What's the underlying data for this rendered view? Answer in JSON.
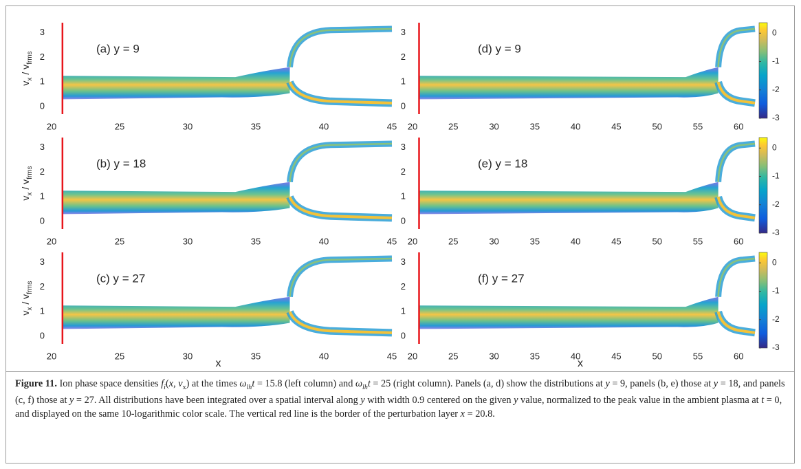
{
  "figure": {
    "ylabel_parts": [
      "v",
      "x",
      " / v",
      "frms"
    ],
    "xlabel": "x",
    "red_line": {
      "x": 20.8,
      "color": "#e8151b"
    },
    "colorbar": {
      "clim": [
        -3,
        0.37
      ],
      "ticks": [
        0,
        -1,
        -2,
        -3
      ]
    },
    "panels": [
      {
        "label": "(a) y = 9",
        "xlim": [
          20,
          45
        ],
        "xticks": [
          20,
          25,
          30,
          35,
          40,
          45
        ],
        "ylim": [
          -0.3,
          3.4
        ],
        "yticks": [
          0,
          1,
          2,
          3
        ]
      },
      {
        "label": "(b) y = 18",
        "xlim": [
          20,
          45
        ],
        "xticks": [
          20,
          25,
          30,
          35,
          40,
          45
        ],
        "ylim": [
          -0.3,
          3.4
        ],
        "yticks": [
          0,
          1,
          2,
          3
        ]
      },
      {
        "label": "(c) y = 27",
        "xlim": [
          20,
          45
        ],
        "xticks": [
          20,
          25,
          30,
          35,
          40,
          45
        ],
        "ylim": [
          -0.3,
          3.4
        ],
        "yticks": [
          0,
          1,
          2,
          3
        ]
      },
      {
        "label": "(d) y = 9",
        "xlim": [
          20,
          62
        ],
        "xticks": [
          20,
          25,
          30,
          35,
          40,
          45,
          50,
          55,
          60
        ],
        "ylim": [
          -0.3,
          3.4
        ],
        "yticks": [
          0,
          1,
          2,
          3
        ]
      },
      {
        "label": "(e) y = 18",
        "xlim": [
          20,
          62
        ],
        "xticks": [
          20,
          25,
          30,
          35,
          40,
          45,
          50,
          55,
          60
        ],
        "ylim": [
          -0.3,
          3.4
        ],
        "yticks": [
          0,
          1,
          2,
          3
        ]
      },
      {
        "label": "(f) y = 27",
        "xlim": [
          20,
          62
        ],
        "xticks": [
          20,
          25,
          30,
          35,
          40,
          45,
          50,
          55,
          60
        ],
        "ylim": [
          -0.3,
          3.4
        ],
        "yticks": [
          0,
          1,
          2,
          3
        ]
      }
    ],
    "caption": {
      "label": "Figure 11.",
      "parts": [
        "Ion phase space densities ",
        "f",
        "i",
        "(",
        "x",
        ", ",
        "v",
        "x",
        ") at the times ",
        "ω",
        "lh",
        "t",
        " = 15.8 (left column) and ",
        "ω",
        "lh",
        "t",
        " = 25 (right column). Panels (a, d) show the distributions at ",
        "y",
        " = 9, panels (b, e) those at ",
        "y",
        " = 18, and panels (c, f) those at ",
        "y",
        " = 27. All distributions have been integrated over a spatial interval along ",
        "y",
        " with width 0.9 centered on the given ",
        "y",
        " value, normalized to the peak value in the ambient plasma at ",
        "t",
        " = 0, and displayed on the same 10-logarithmic color scale. The vertical red line is the border of the perturbation layer ",
        "x",
        " = 20.8."
      ]
    }
  }
}
